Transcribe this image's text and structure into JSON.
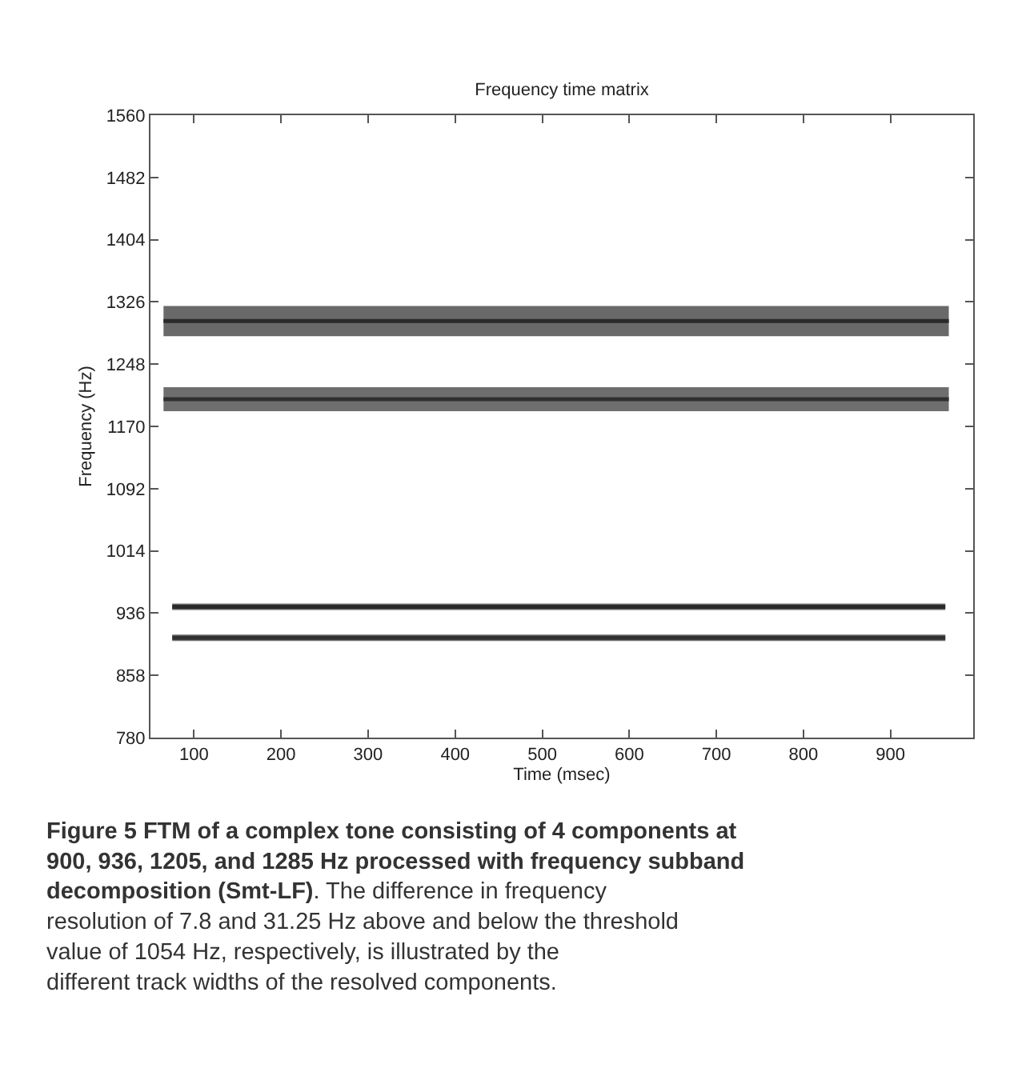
{
  "chart_data": {
    "type": "line",
    "title": "Frequency time matrix",
    "xlabel": "Time (msec)",
    "ylabel": "Frequency (Hz)",
    "series": [
      {
        "color": "#2a2a2a",
        "x": [
          65,
          967
        ],
        "values": [
          1302,
          1302
        ],
        "lower": [
          1283,
          1283
        ],
        "upper": [
          1321,
          1321
        ]
      },
      {
        "color": "#303030",
        "x": [
          65,
          967
        ],
        "values": [
          1204,
          1204
        ],
        "lower": [
          1189,
          1189
        ],
        "upper": [
          1219,
          1219
        ]
      },
      {
        "color": "#2a2a2a",
        "x": [
          75,
          963
        ],
        "values": [
          944,
          944
        ],
        "lower": [
          940,
          940
        ],
        "upper": [
          948,
          948
        ]
      },
      {
        "color": "#303030",
        "x": [
          75,
          963
        ],
        "values": [
          905,
          905
        ],
        "lower": [
          901,
          901
        ],
        "upper": [
          909,
          909
        ]
      }
    ],
    "xlim": [
      50,
      995
    ],
    "xticks": [
      100,
      200,
      300,
      400,
      500,
      600,
      700,
      800,
      900
    ],
    "ylim": [
      780,
      1560
    ],
    "yticks": [
      780,
      858,
      936,
      1014,
      1092,
      1170,
      1248,
      1326,
      1404,
      1482,
      1560
    ],
    "marker": "none",
    "line_style": "solid",
    "annotations": [
      "Figure 5 FTM of a complex tone consisting of 4 components at 900, 936, 1205, and 1285 Hz processed with frequency subband decomposition (Smt-LF)",
      ". The difference in frequency resolution of 7.8 and 31.25 Hz above and below the threshold value of 1054 Hz, respectively, is illustrated by the different track widths of the resolved components."
    ]
  }
}
